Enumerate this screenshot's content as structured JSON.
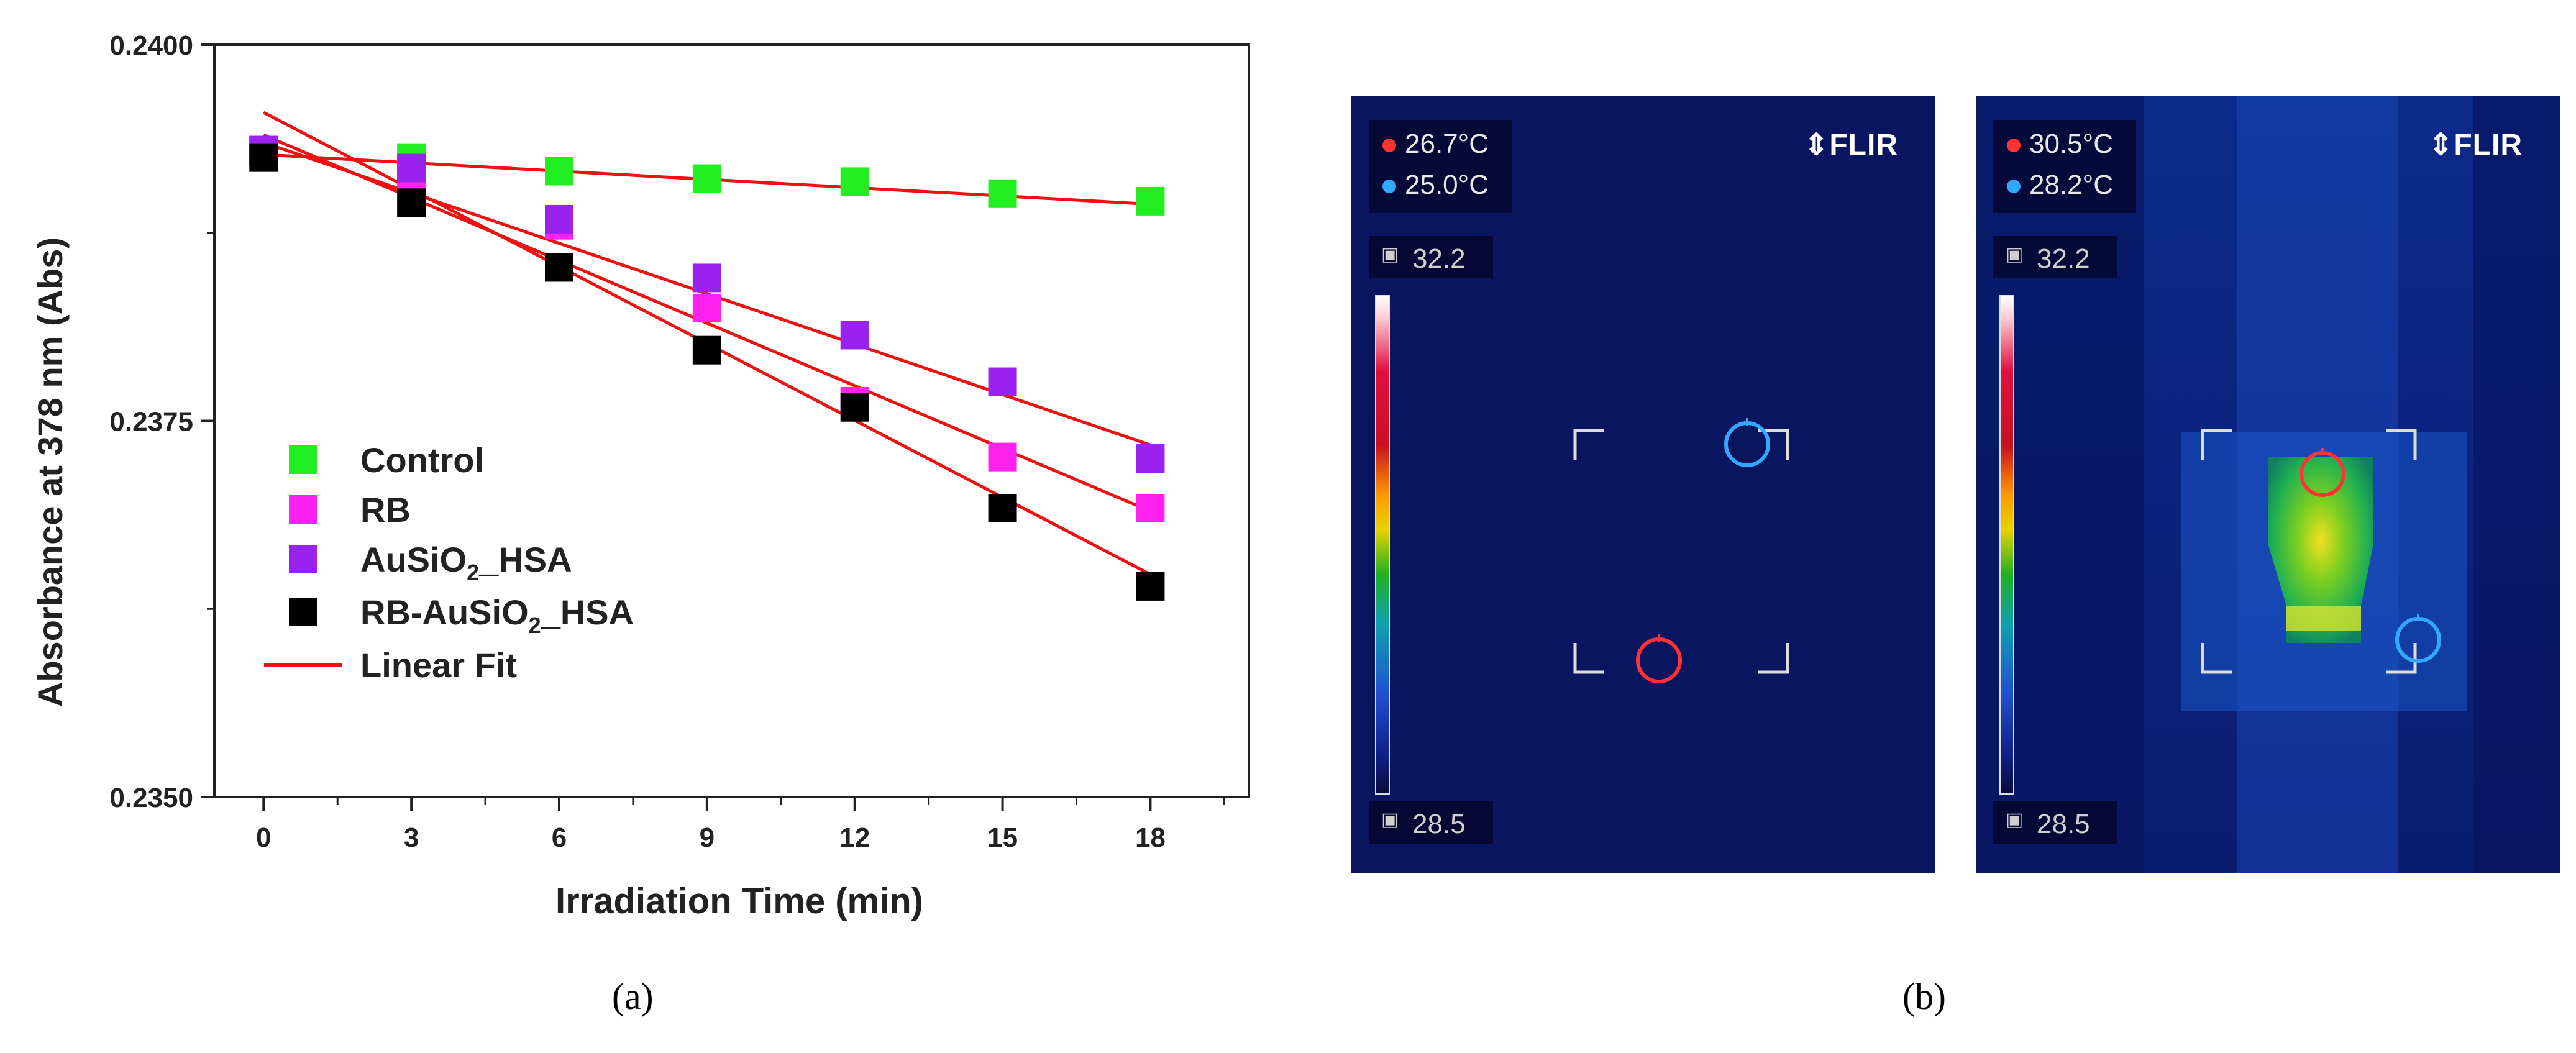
{
  "chart_data": {
    "type": "scatter",
    "xlabel": "Irradiation Time (min)",
    "ylabel": "Absorbance at 378 nm (Abs)",
    "xlim": [
      -1,
      20
    ],
    "ylim": [
      0.235,
      0.24
    ],
    "x_ticks": [
      "0",
      "3",
      "6",
      "9",
      "12",
      "15",
      "18"
    ],
    "y_ticks": [
      "0.2350",
      "0.2375",
      "0.2400"
    ],
    "legend_position": "bottom-left",
    "x": [
      0,
      3,
      6,
      9,
      12,
      15,
      18
    ],
    "series": [
      {
        "name": "Control",
        "color": "#22ee22",
        "values": [
          0.23929,
          0.23925,
          0.23916,
          0.23911,
          0.23909,
          0.23901,
          0.23896
        ]
      },
      {
        "name": "RB",
        "color": "#ff22ee",
        "values": [
          0.23929,
          0.2391,
          0.2388,
          0.23825,
          0.23763,
          0.23726,
          0.23692
        ]
      },
      {
        "name": "AuSiO2_HSA",
        "color": "#9922ee",
        "legend_parts": [
          "AuSiO",
          "2",
          "_HSA"
        ],
        "values": [
          0.2393,
          0.23918,
          0.23884,
          0.23845,
          0.23807,
          0.23776,
          0.23725
        ]
      },
      {
        "name": "RB-AuSiO2_HSA",
        "color": "#000000",
        "legend_parts": [
          "RB-AuSiO",
          "2",
          "_HSA"
        ],
        "values": [
          0.23925,
          0.23895,
          0.23852,
          0.23797,
          0.23759,
          0.23692,
          0.2364
        ]
      }
    ],
    "fit_label": "Linear Fit",
    "fit_color": "#ee1111",
    "fits": [
      {
        "series": "Control",
        "y0": 0.23927,
        "y18": 0.23894
      },
      {
        "series": "RB",
        "y0": 0.2394,
        "y18": 0.2369
      },
      {
        "series": "AuSiO2_HSA",
        "y0": 0.23935,
        "y18": 0.23734
      },
      {
        "series": "RB-AuSiO2_HSA",
        "y0": 0.23955,
        "y18": 0.23648
      }
    ]
  },
  "captions": {
    "a": "(a)",
    "b": "(b)"
  },
  "thermal_images": [
    {
      "brand": "FLIR",
      "t_max": "26.7°C",
      "t_min": "25.0°C",
      "scale_top": "32.2",
      "scale_bottom": "28.5",
      "state": "cool"
    },
    {
      "brand": "FLIR",
      "t_max": "30.5°C",
      "t_min": "28.2°C",
      "scale_top": "32.2",
      "scale_bottom": "28.5",
      "state": "heated"
    }
  ],
  "colors": {
    "max_marker": "#ff3333",
    "min_marker": "#33a8ff",
    "thermal_background": "#0a1560"
  }
}
